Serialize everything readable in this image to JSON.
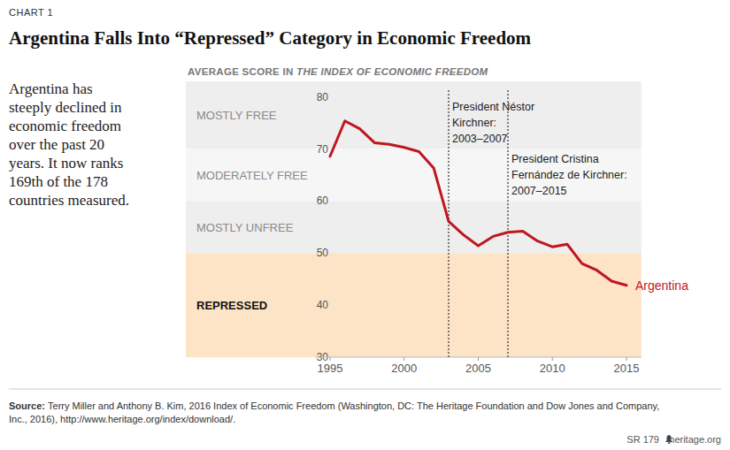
{
  "chart_data": {
    "type": "line",
    "kicker": "CHART 1",
    "title": "Argentina Falls Into “Repressed” Category in Economic Freedom",
    "description": [
      "Argentina has",
      "steeply declined in",
      "economic freedom",
      "over the past 20",
      "years. It now ranks",
      "169th of the 178",
      "countries measured."
    ],
    "subtitle": [
      "AVERAGE SCORE IN",
      "THE INDEX OF ECONOMIC FREEDOM"
    ],
    "x": [
      1995,
      1996,
      1997,
      1998,
      1999,
      2000,
      2001,
      2002,
      2003,
      2004,
      2005,
      2006,
      2007,
      2008,
      2009,
      2010,
      2011,
      2012,
      2013,
      2014,
      2015
    ],
    "series": [
      {
        "name": "Argentina",
        "color": "#c0161f",
        "values": [
          68.6,
          75.4,
          73.9,
          71.2,
          70.9,
          70.3,
          69.5,
          66.3,
          56.1,
          53.5,
          51.4,
          53.2,
          54.0,
          54.2,
          52.3,
          51.2,
          51.7,
          48.0,
          46.7,
          44.6,
          43.8
        ]
      }
    ],
    "xlim": [
      1994,
      2016
    ],
    "xticks": [
      1995,
      2000,
      2005,
      2010,
      2015
    ],
    "ylim": [
      30,
      83
    ],
    "yticks": [
      30,
      40,
      50,
      60,
      70,
      80
    ],
    "grid": false,
    "bands": [
      {
        "label": "MOSTLY FREE",
        "from": 70,
        "to": 80,
        "color": "#eeeeee"
      },
      {
        "label": "MODERATELY FREE",
        "from": 60,
        "to": 70,
        "color": "#f6f6f6"
      },
      {
        "label": "MOSTLY UNFREE",
        "from": 50,
        "to": 60,
        "color": "#eeeeee"
      },
      {
        "label": "REPRESSED",
        "from": 0,
        "to": 50,
        "color": "#fde4c6"
      }
    ],
    "annotations": [
      {
        "x": 2003,
        "text": [
          "President Néstor",
          "Kirchner:",
          "2003–2007"
        ]
      },
      {
        "x": 2007,
        "text": [
          "President Cristina",
          "Fernández de Kirchner:",
          "2007–2015"
        ]
      }
    ],
    "source": {
      "label": "Source:",
      "text": [
        "Terry Miller and Anthony B. Kim, 2016 Index of Economic Freedom (Washington, DC: The Heritage Foundation and Dow Jones and Company,",
        "Inc., 2016), http://www.heritage.org/index/download/."
      ]
    },
    "footer": [
      "SR 179",
      "heritage.org"
    ]
  }
}
